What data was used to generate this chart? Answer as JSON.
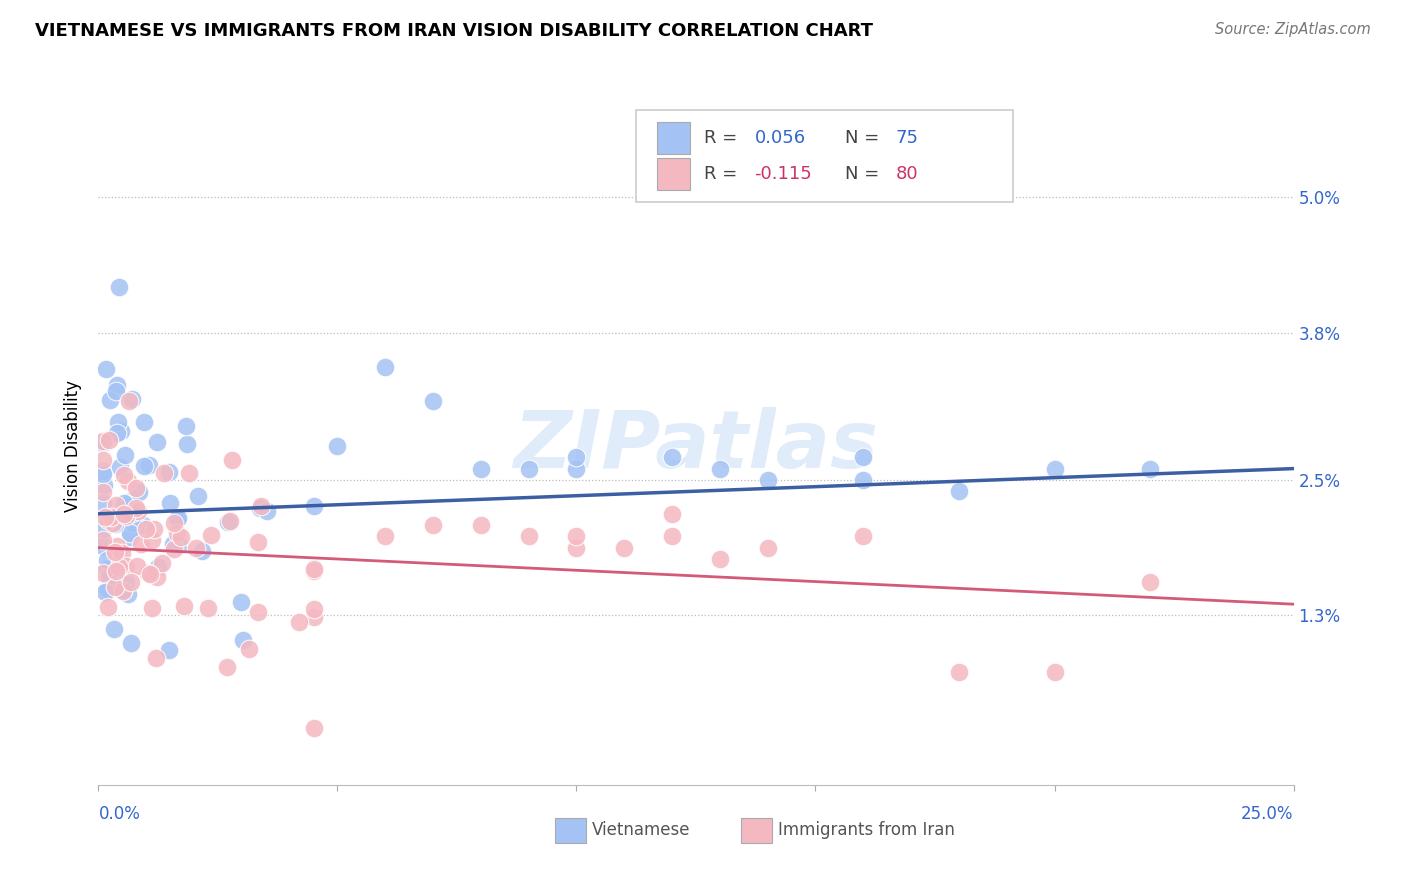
{
  "title": "VIETNAMESE VS IMMIGRANTS FROM IRAN VISION DISABILITY CORRELATION CHART",
  "source": "Source: ZipAtlas.com",
  "ylabel": "Vision Disability",
  "ytick_vals": [
    0.013,
    0.025,
    0.038,
    0.05
  ],
  "ytick_labels": [
    "1.3%",
    "2.5%",
    "3.8%",
    "5.0%"
  ],
  "xlim": [
    0.0,
    0.25
  ],
  "ylim": [
    -0.002,
    0.058
  ],
  "blue_R": 0.056,
  "blue_N": 75,
  "pink_R": -0.115,
  "pink_N": 80,
  "blue_color": "#a4c2f4",
  "pink_color": "#f4b8c1",
  "blue_line_color": "#3c5fa3",
  "pink_line_color": "#d45a7a",
  "watermark": "ZIPatlas",
  "blue_line_x0": 0.0,
  "blue_line_y0": 0.022,
  "blue_line_x1": 0.25,
  "blue_line_y1": 0.026,
  "pink_line_x0": 0.0,
  "pink_line_y0": 0.019,
  "pink_line_x1": 0.25,
  "pink_line_y1": 0.014
}
